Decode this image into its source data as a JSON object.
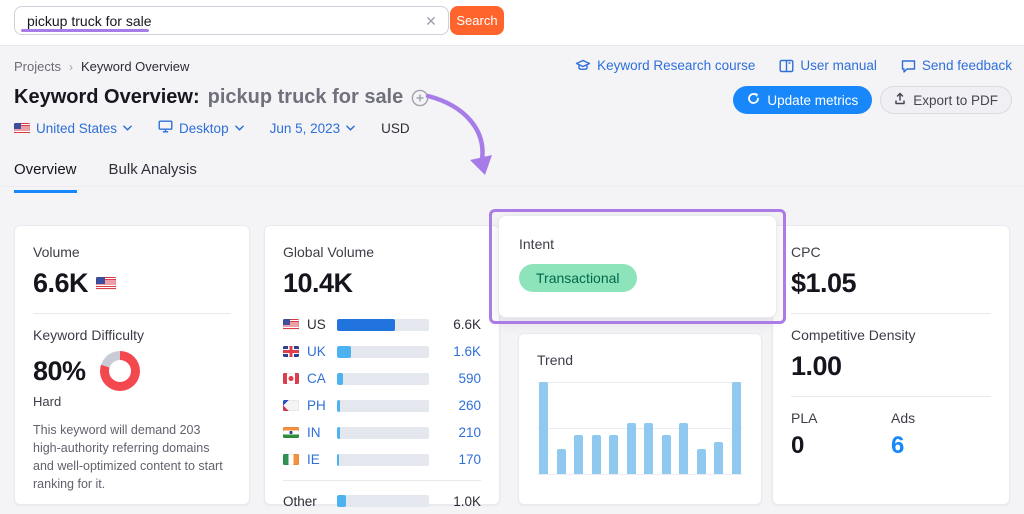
{
  "search": {
    "value": "pickup truck for sale",
    "button_label": "Search"
  },
  "topnav": {
    "breadcrumb": [
      "Projects",
      "Keyword Overview"
    ],
    "links": [
      {
        "icon": "graduation-cap-icon",
        "label": "Keyword Research course"
      },
      {
        "icon": "book-icon",
        "label": "User manual"
      },
      {
        "icon": "chat-bubble-icon",
        "label": "Send feedback"
      }
    ]
  },
  "header": {
    "title_prefix": "Keyword Overview:",
    "title_keyword": "pickup truck for sale",
    "update_button": "Update metrics",
    "export_button": "Export to PDF"
  },
  "filters": {
    "country": "United States",
    "device": "Desktop",
    "date": "Jun 5, 2023",
    "currency": "USD"
  },
  "tabs": [
    {
      "label": "Overview",
      "active": true
    },
    {
      "label": "Bulk Analysis",
      "active": false
    }
  ],
  "cards": {
    "volume": {
      "label": "Volume",
      "value": "6.6K",
      "flag": "us"
    },
    "difficulty": {
      "label": "Keyword Difficulty",
      "value": "80%",
      "percent": 80,
      "level": "Hard",
      "description": "This keyword will demand 203 high-authority referring domains and well-optimized content to start ranking for it."
    },
    "global_volume": {
      "label": "Global Volume",
      "value": "10.4K",
      "rows": [
        {
          "flag": "us",
          "country": "US",
          "value": "6.6K",
          "pct": 63,
          "dark": true,
          "link": false
        },
        {
          "flag": "uk",
          "country": "UK",
          "value": "1.6K",
          "pct": 15,
          "dark": false,
          "link": true
        },
        {
          "flag": "ca",
          "country": "CA",
          "value": "590",
          "pct": 6,
          "dark": false,
          "link": true
        },
        {
          "flag": "ph",
          "country": "PH",
          "value": "260",
          "pct": 3.5,
          "dark": false,
          "link": true
        },
        {
          "flag": "in",
          "country": "IN",
          "value": "210",
          "pct": 3,
          "dark": false,
          "link": true
        },
        {
          "flag": "ie",
          "country": "IE",
          "value": "170",
          "pct": 2.5,
          "dark": false,
          "link": true
        },
        {
          "flag": "",
          "country": "Other",
          "value": "1.0K",
          "pct": 10,
          "dark": false,
          "link": false,
          "divider_above": true
        }
      ]
    },
    "intent": {
      "label": "Intent",
      "badge": "Transactional"
    },
    "trend": {
      "label": "Trend"
    },
    "cpc": {
      "label": "CPC",
      "value": "$1.05"
    },
    "competitive_density": {
      "label": "Competitive Density",
      "value": "1.00"
    },
    "pla": {
      "label": "PLA",
      "value": "0"
    },
    "ads": {
      "label": "Ads",
      "value": "6"
    }
  },
  "chart_data": {
    "type": "bar",
    "title": "Trend",
    "values": [
      100,
      27,
      42,
      42,
      42,
      55,
      55,
      42,
      55,
      27,
      35,
      100
    ],
    "unit": "relative percent of max monthly volume",
    "ylim": [
      0,
      100
    ],
    "grid": "horizontal lines at 0 / 50 / 100",
    "tick_labels": "none visible"
  },
  "colors": {
    "accent_blue": "#1787fa",
    "link_blue": "#2e6fd8",
    "search_orange": "#ff642d",
    "annotation_purple": "#a87ce8",
    "badge_green_bg": "#8de4bb",
    "badge_green_text": "#00684b",
    "difficulty_red": "#f4484f",
    "donut_gray": "#c9ccd6",
    "bar_dark_blue": "#2173dd",
    "bar_light_blue": "#4cb3f0",
    "trend_bar_blue": "#90c9ef"
  }
}
